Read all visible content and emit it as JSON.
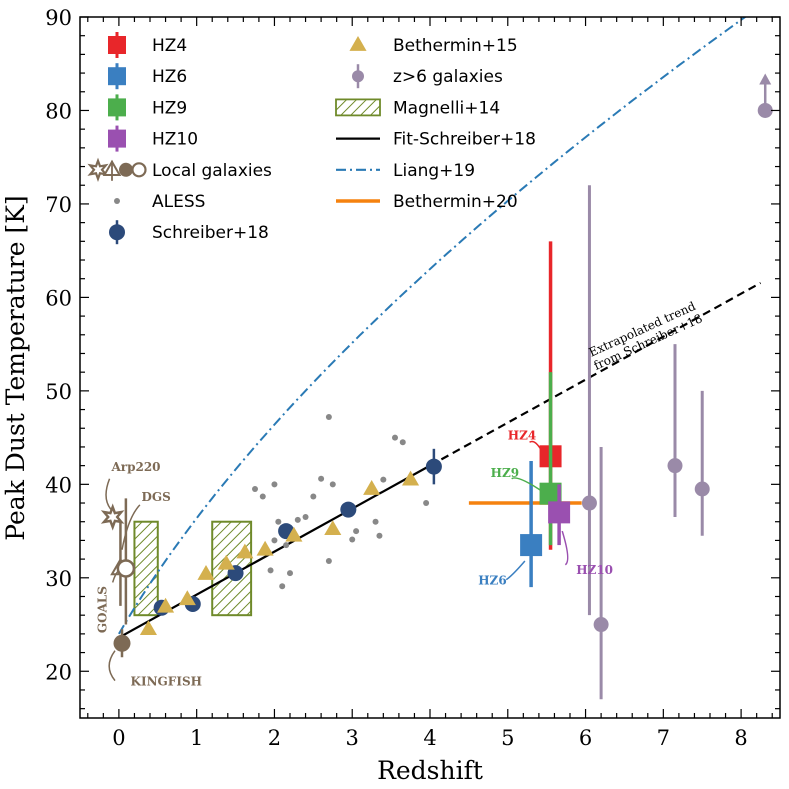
{
  "chart_data": {
    "type": "scatter",
    "title": "",
    "xlabel": "Redshift",
    "ylabel": "Peak Dust Temperature [K]",
    "xlim": [
      -0.5,
      8.5
    ],
    "ylim": [
      15,
      90
    ],
    "xticks": [
      0,
      1,
      2,
      3,
      4,
      5,
      6,
      7,
      8
    ],
    "yticks": [
      20,
      30,
      40,
      50,
      60,
      70,
      80,
      90
    ],
    "colors": {
      "hz4": "#e8262a",
      "hz6": "#3a7fc1",
      "hz9": "#4cae4c",
      "hz10": "#9a50b0",
      "local": "#7d6a55",
      "aless": "#888888",
      "schreiber": "#2c4a7a",
      "bethermin15": "#d4b04e",
      "zgt6": "#9a8aa8",
      "magnelli": "#6f8a2a",
      "fit": "#000000",
      "liang": "#2a7ab5",
      "bethermin20": "#f5820f"
    },
    "legend": {
      "position": "top-left",
      "col1": [
        {
          "key": "hz4",
          "label": "HZ4"
        },
        {
          "key": "hz6",
          "label": "HZ6"
        },
        {
          "key": "hz9",
          "label": "HZ9"
        },
        {
          "key": "hz10",
          "label": "HZ10"
        },
        {
          "key": "local",
          "label": "Local galaxies"
        },
        {
          "key": "aless",
          "label": "ALESS"
        },
        {
          "key": "schreiber",
          "label": "Schreiber+18"
        }
      ],
      "col2": [
        {
          "key": "bethermin15",
          "label": "Bethermin+15"
        },
        {
          "key": "zgt6",
          "label": "z>6 galaxies"
        },
        {
          "key": "magnelli",
          "label": "Magnelli+14"
        },
        {
          "key": "fit",
          "label": "Fit-Schreiber+18"
        },
        {
          "key": "liang",
          "label": "Liang+19"
        },
        {
          "key": "bethermin20",
          "label": "Bethermin+20"
        }
      ]
    },
    "hz_points": [
      {
        "name": "HZ4",
        "key": "hz4",
        "z": 5.55,
        "t": 43.0,
        "lo": 33.0,
        "hi": 66.0
      },
      {
        "name": "HZ9",
        "key": "hz9",
        "z": 5.55,
        "t": 39.0,
        "lo": 33.5,
        "hi": 52.0
      },
      {
        "name": "HZ10",
        "key": "hz10",
        "z": 5.66,
        "t": 37.0,
        "lo": 33.5,
        "hi": 40.0
      },
      {
        "name": "HZ6",
        "key": "hz6",
        "z": 5.3,
        "t": 33.5,
        "lo": 29.0,
        "hi": 42.5
      }
    ],
    "hz_labels": [
      {
        "text": "HZ4",
        "key": "hz4",
        "z": 5.0,
        "t": 44.8
      },
      {
        "text": "HZ9",
        "key": "hz9",
        "z": 4.78,
        "t": 40.8
      },
      {
        "text": "HZ6",
        "key": "hz6",
        "z": 4.62,
        "t": 29.3
      },
      {
        "text": "HZ10",
        "key": "hz10",
        "z": 5.88,
        "t": 30.4
      }
    ],
    "local_labels": [
      {
        "text": "Arp220",
        "z": 0.22,
        "t": 41.4
      },
      {
        "text": "DGS",
        "z": 0.29,
        "t": 38.2
      },
      {
        "text": "GOALS",
        "z": -0.16,
        "t": 26.6
      },
      {
        "text": "KINGFISH",
        "z": 0.15,
        "t": 18.5
      }
    ],
    "local_points": [
      {
        "name": "Arp220",
        "marker": "star",
        "z": -0.08,
        "t": 36.5
      },
      {
        "name": "DGS",
        "marker": "triangle",
        "z": 0.02,
        "t": 31.0,
        "lo": 27.0,
        "hi": 36.0
      },
      {
        "name": "GOALS",
        "marker": "circle-open",
        "z": 0.09,
        "t": 31.0,
        "lo": 25.0,
        "hi": 38.5
      },
      {
        "name": "KINGFISH",
        "marker": "circle",
        "z": 0.04,
        "t": 23.0,
        "lo": 21.5,
        "hi": 24.5
      }
    ],
    "aless": [
      [
        1.75,
        39.5
      ],
      [
        1.85,
        38.7
      ],
      [
        2.0,
        40.0
      ],
      [
        2.05,
        36.0
      ],
      [
        2.0,
        34.0
      ],
      [
        2.1,
        29.1
      ],
      [
        2.2,
        30.5
      ],
      [
        2.4,
        36.5
      ],
      [
        2.5,
        38.7
      ],
      [
        2.6,
        40.6
      ],
      [
        2.7,
        47.2
      ],
      [
        2.75,
        40.0
      ],
      [
        2.7,
        31.8
      ],
      [
        3.0,
        34.1
      ],
      [
        3.05,
        35.0
      ],
      [
        3.3,
        36.0
      ],
      [
        3.35,
        34.5
      ],
      [
        3.4,
        40.5
      ],
      [
        3.55,
        45.0
      ],
      [
        3.65,
        44.5
      ],
      [
        3.95,
        38.0
      ],
      [
        2.3,
        36.2
      ],
      [
        1.95,
        30.8
      ],
      [
        2.15,
        33.5
      ]
    ],
    "schreiber": [
      {
        "z": 0.55,
        "t": 26.8
      },
      {
        "z": 0.95,
        "t": 27.2
      },
      {
        "z": 1.5,
        "t": 30.5
      },
      {
        "z": 2.15,
        "t": 35.0
      },
      {
        "z": 2.95,
        "t": 37.3
      },
      {
        "z": 4.05,
        "t": 41.9,
        "lo": 40.0,
        "hi": 43.8
      }
    ],
    "bethermin15": [
      [
        0.38,
        24.5
      ],
      [
        0.6,
        26.9
      ],
      [
        0.88,
        27.7
      ],
      [
        1.12,
        30.4
      ],
      [
        1.38,
        31.5
      ],
      [
        1.62,
        32.7
      ],
      [
        1.88,
        33.0
      ],
      [
        2.25,
        34.5
      ],
      [
        2.75,
        35.2
      ],
      [
        3.25,
        39.5
      ],
      [
        3.75,
        40.5
      ]
    ],
    "zgt6": [
      {
        "z": 6.05,
        "t": 38.0,
        "lo": 26.0,
        "hi": 72.0
      },
      {
        "z": 6.2,
        "t": 25.0,
        "lo": 17.0,
        "hi": 44.0
      },
      {
        "z": 7.15,
        "t": 42.0,
        "lo": 36.5,
        "hi": 55.0
      },
      {
        "z": 7.5,
        "t": 39.5,
        "lo": 34.5,
        "hi": 50.0
      },
      {
        "z": 8.31,
        "t": 80.0,
        "lower_limit": true
      }
    ],
    "magnelli": [
      {
        "z0": 0.2,
        "z1": 0.5,
        "t0": 26.0,
        "t1": 36.0
      },
      {
        "z0": 1.2,
        "z1": 1.7,
        "t0": 26.0,
        "t1": 36.0
      }
    ],
    "fit": {
      "z0": 0.0,
      "z1": 4.0,
      "z_extrap_end": 8.25,
      "t0": 23.6,
      "slope": 4.6
    },
    "liang": {
      "z0": 0.0,
      "z1": 8.25,
      "a": 24.0,
      "b": 0.6
    },
    "bethermin20": {
      "z0": 4.5,
      "z1": 5.95,
      "t": 38.0
    },
    "trend_label": [
      "Extrapolated trend",
      "from Schreiber+18"
    ]
  }
}
